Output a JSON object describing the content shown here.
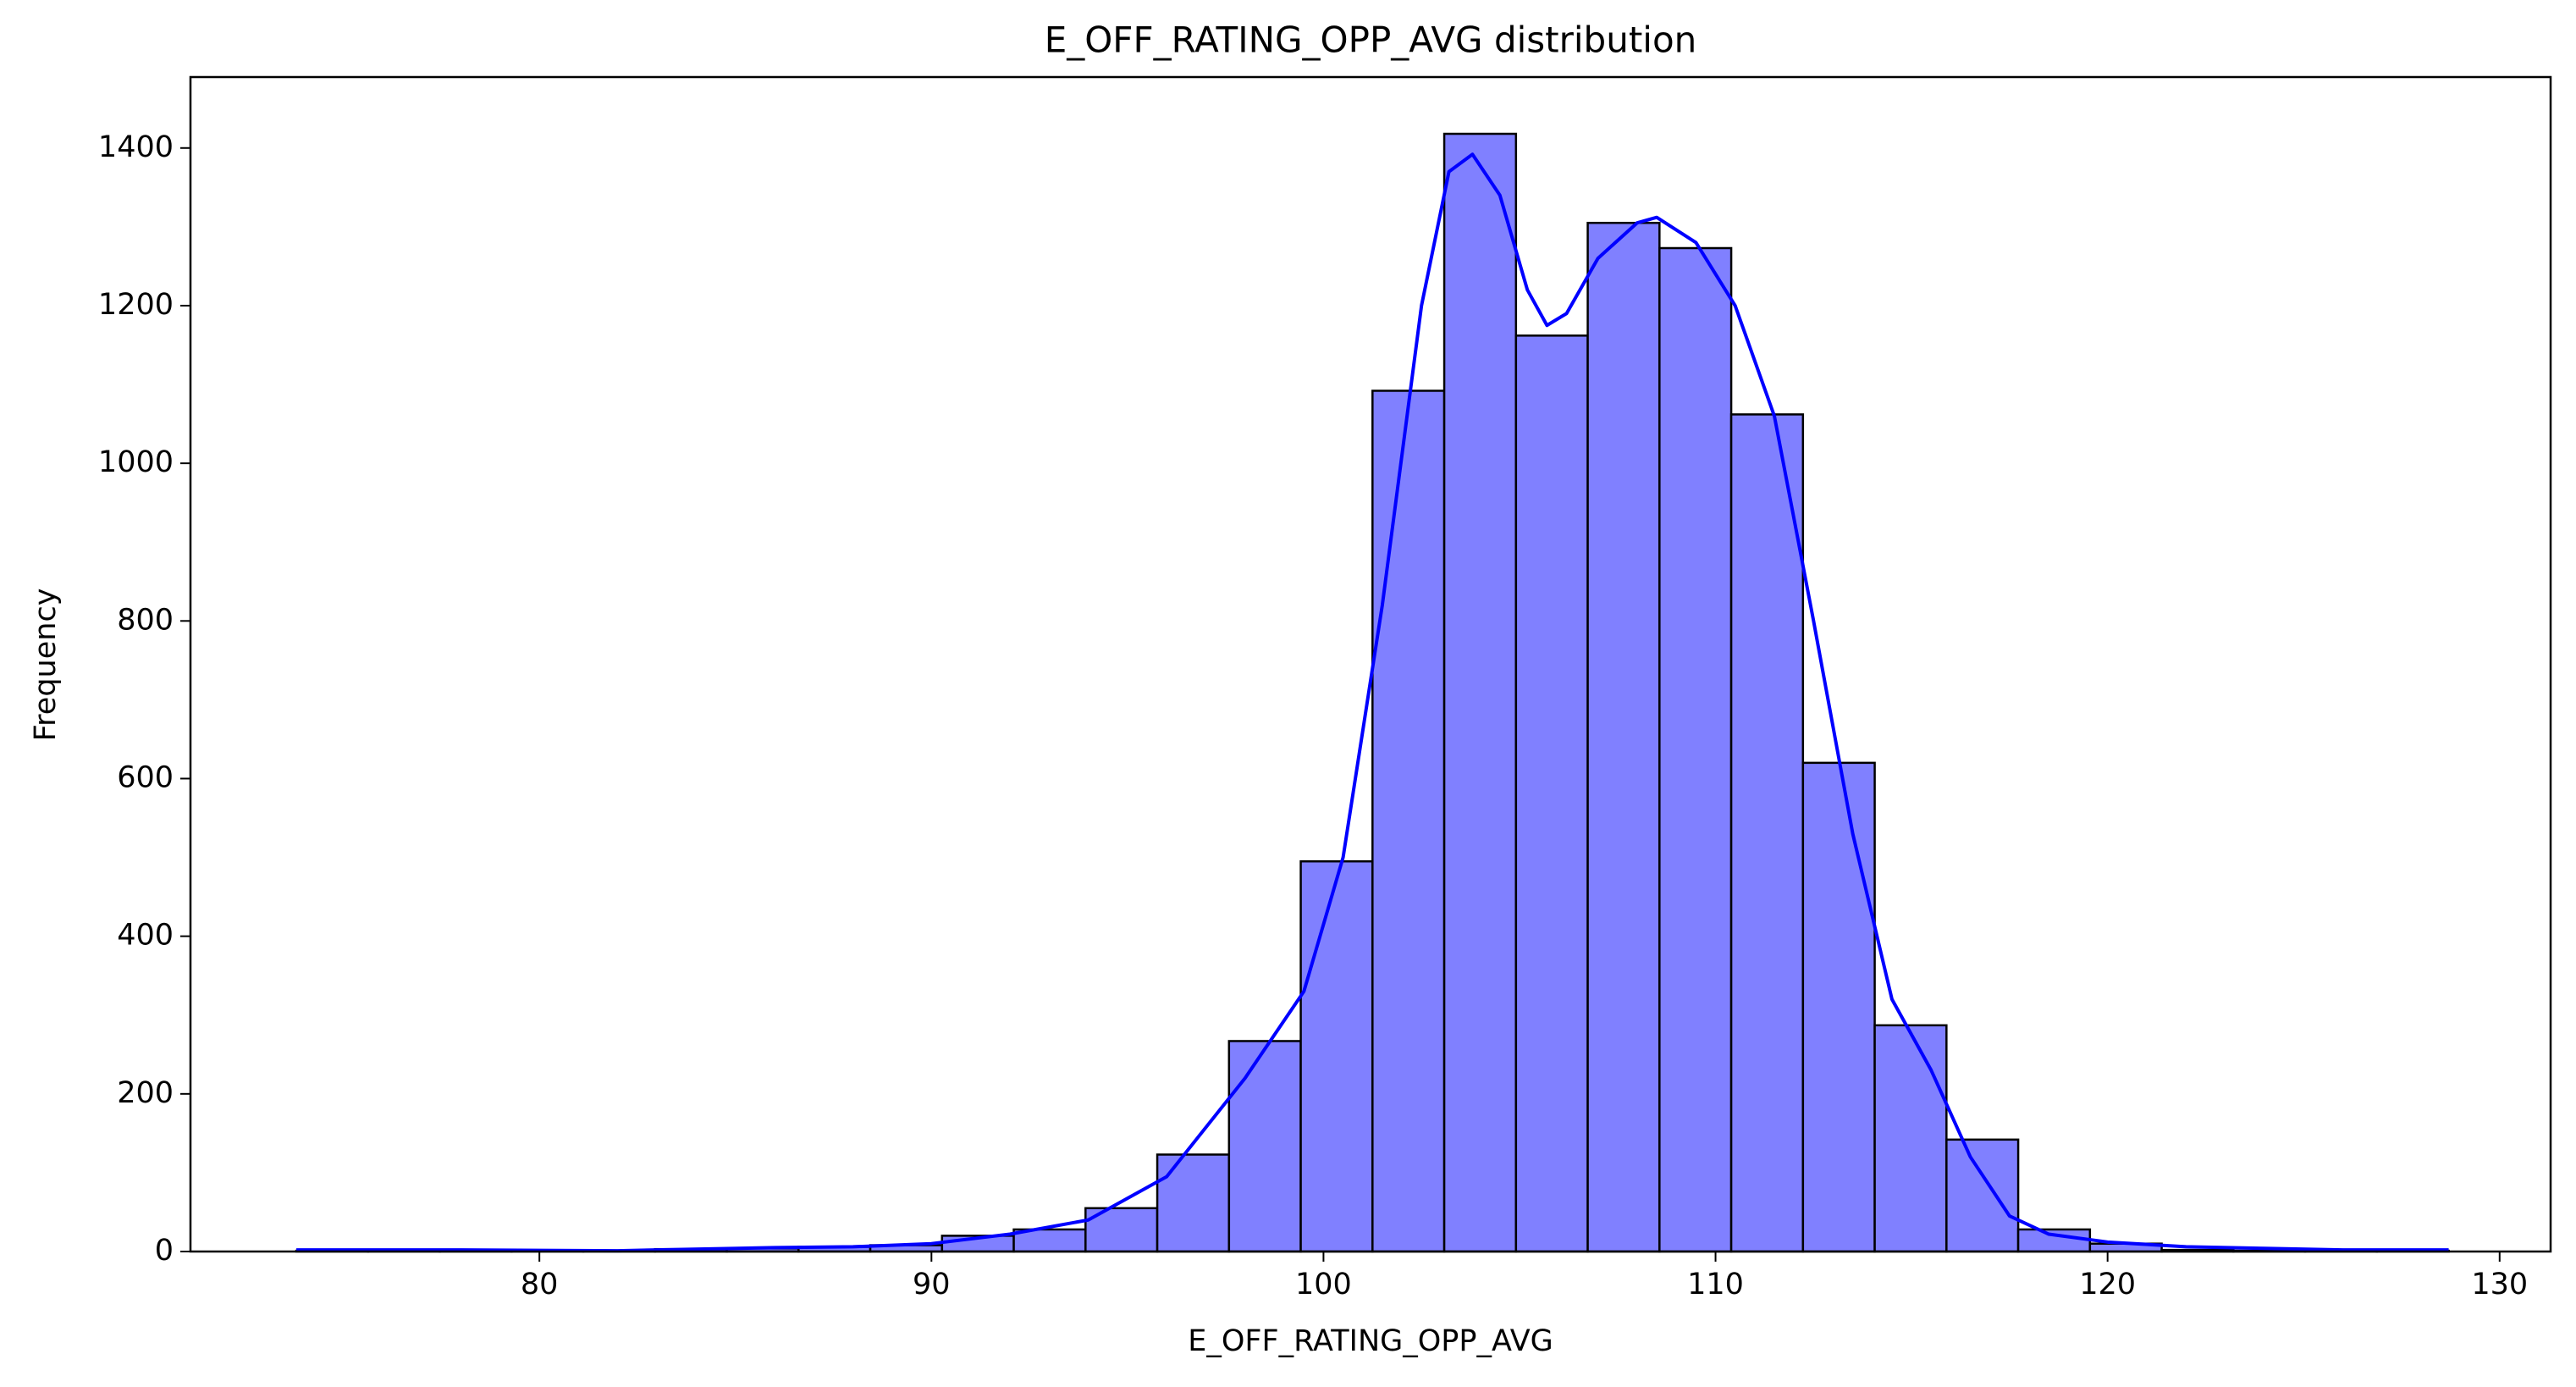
{
  "chart_data": {
    "type": "histogram",
    "title": "E_OFF_RATING_OPP_AVG distribution",
    "x_label": "E_OFF_RATING_OPP_AVG",
    "y_label": "Frequency",
    "bins": [
      73.8,
      75.63,
      77.46,
      79.29,
      81.12,
      82.95,
      84.78,
      86.61,
      88.44,
      90.27,
      92.1,
      93.93,
      95.76,
      97.59,
      99.42,
      101.25,
      103.08,
      104.91,
      106.74,
      108.57,
      110.4,
      112.23,
      114.06,
      115.89,
      117.72,
      119.55,
      121.38,
      123.21,
      125.04,
      126.87,
      128.7
    ],
    "values": [
      1,
      1,
      2,
      1,
      1,
      3,
      4,
      6,
      8,
      20,
      28,
      55,
      123,
      267,
      495,
      1092,
      1418,
      1162,
      1305,
      1273,
      1062,
      620,
      287,
      142,
      28,
      10,
      2,
      1,
      1,
      1
    ],
    "color": "#8080ff",
    "edgecolor": "#000000",
    "kde": {
      "color": "#0000ff",
      "x": [
        73.8,
        78,
        82,
        86,
        88,
        90,
        92,
        94,
        96,
        98,
        99.5,
        100.5,
        101.5,
        102.5,
        103.2,
        103.8,
        104.5,
        105.2,
        105.7,
        106.2,
        107,
        108,
        108.5,
        109.5,
        110.5,
        111.5,
        112.5,
        113.5,
        114.5,
        115.5,
        116.5,
        117.5,
        118.5,
        120,
        122,
        124,
        126,
        128.7
      ],
      "values": [
        2,
        2,
        1,
        5,
        6,
        10,
        22,
        40,
        95,
        220,
        330,
        500,
        820,
        1200,
        1370,
        1392,
        1340,
        1220,
        1175,
        1190,
        1260,
        1305,
        1312,
        1280,
        1200,
        1060,
        800,
        530,
        320,
        230,
        120,
        45,
        22,
        12,
        6,
        4,
        2,
        2
      ]
    },
    "xlim": [
      71.1,
      131.3
    ],
    "ylim": [
      0,
      1490
    ],
    "xticks": [
      80,
      90,
      100,
      110,
      120,
      130
    ],
    "yticks": [
      0,
      200,
      400,
      600,
      800,
      1000,
      1200,
      1400
    ]
  }
}
